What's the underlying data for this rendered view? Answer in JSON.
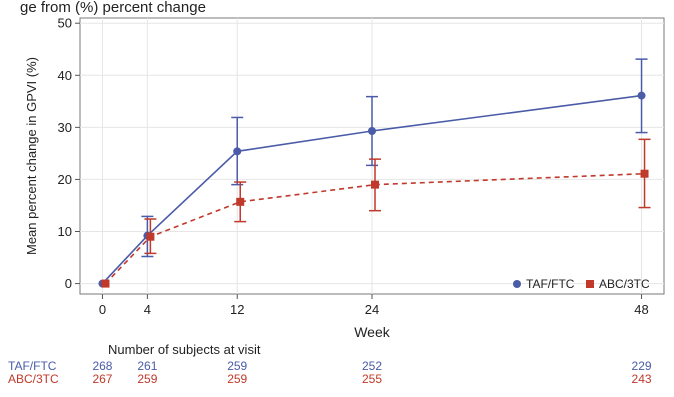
{
  "header": {
    "partial_title": "ge from (%) percent change"
  },
  "chart_data": {
    "type": "line",
    "title": "",
    "xlabel": "Week",
    "ylabel": "Mean percent change in GPVI (%)",
    "x": [
      0,
      4,
      12,
      24,
      48
    ],
    "x_ticks": [
      0,
      4,
      12,
      24,
      48
    ],
    "xlim": [
      -2,
      50
    ],
    "ylim": [
      -2,
      51
    ],
    "y_ticks": [
      0,
      10,
      20,
      30,
      40,
      50
    ],
    "grid": true,
    "legend_position": "bottom-right",
    "series": [
      {
        "name": "TAF/FTC",
        "color": "#4a5ba8",
        "line_style": "solid",
        "marker": "circle",
        "values": [
          0,
          9.2,
          25.4,
          29.3,
          36.1
        ],
        "error_low": [
          0,
          5.2,
          19.0,
          22.7,
          29.0
        ],
        "error_high": [
          0,
          12.9,
          31.9,
          35.9,
          43.1
        ]
      },
      {
        "name": "ABC/3TC",
        "color": "#c0392b",
        "line_style": "dashed",
        "marker": "square",
        "values": [
          0,
          9.0,
          15.7,
          19.0,
          21.1
        ],
        "error_low": [
          0,
          5.8,
          11.9,
          14.0,
          14.6
        ],
        "error_high": [
          0,
          12.4,
          19.5,
          23.9,
          27.7
        ]
      }
    ],
    "subjects_table": {
      "title": "Number of subjects at visit",
      "rows": [
        {
          "label": "TAF/FTC",
          "color": "#4a5ba8",
          "counts": [
            "268",
            "261",
            "259",
            "252",
            "229"
          ]
        },
        {
          "label": "ABC/3TC",
          "color": "#c0392b",
          "counts": [
            "267",
            "259",
            "259",
            "255",
            "243"
          ]
        }
      ]
    }
  }
}
